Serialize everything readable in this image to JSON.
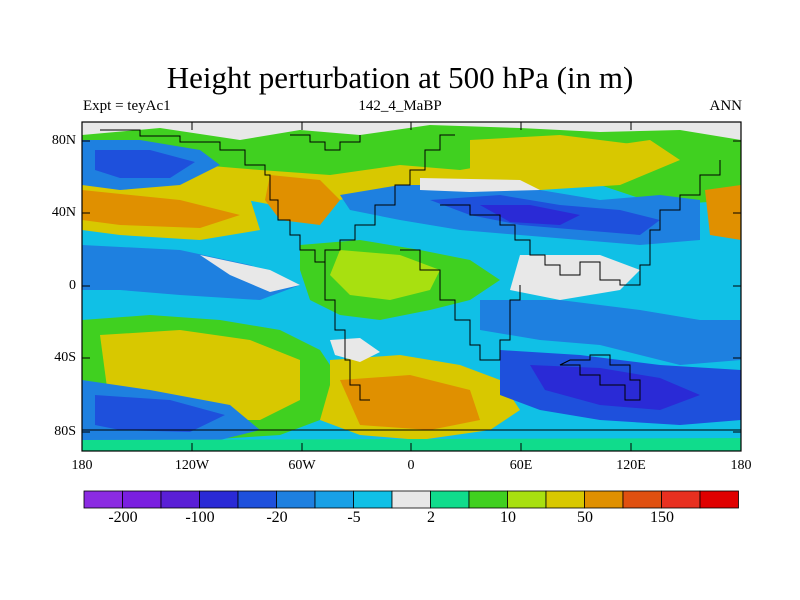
{
  "title": "Height perturbation at 500 hPa (in m)",
  "subtitle_left": "Expt = teyAc1",
  "subtitle_center": "142_4_MaBP",
  "subtitle_right": "ANN",
  "y_ticks": [
    "80N",
    "40N",
    "0",
    "40S",
    "80S"
  ],
  "x_ticks": [
    "180",
    "120W",
    "60W",
    "0",
    "60E",
    "120E",
    "180"
  ],
  "colorbar": {
    "colors": [
      "#8b2be2",
      "#7a1fe0",
      "#5a1fd6",
      "#2a2ad6",
      "#1e50dc",
      "#1e80e0",
      "#18a0e6",
      "#10c0e6",
      "#e8e8e8",
      "#10dc8c",
      "#40d020",
      "#a8e010",
      "#d8c800",
      "#e09000",
      "#e05010",
      "#e83020",
      "#e00000"
    ],
    "labels": [
      "-200",
      "-100",
      "-20",
      "-5",
      "2",
      "10",
      "50",
      "150"
    ]
  },
  "colors": {
    "strong_negative": "#2a2ad6",
    "negative": "#1e80e0",
    "weak_negative": "#10c0e6",
    "near_zero": "#e8e8e8",
    "weak_positive": "#40d020",
    "positive": "#d8c800",
    "strong_positive": "#e09000"
  }
}
